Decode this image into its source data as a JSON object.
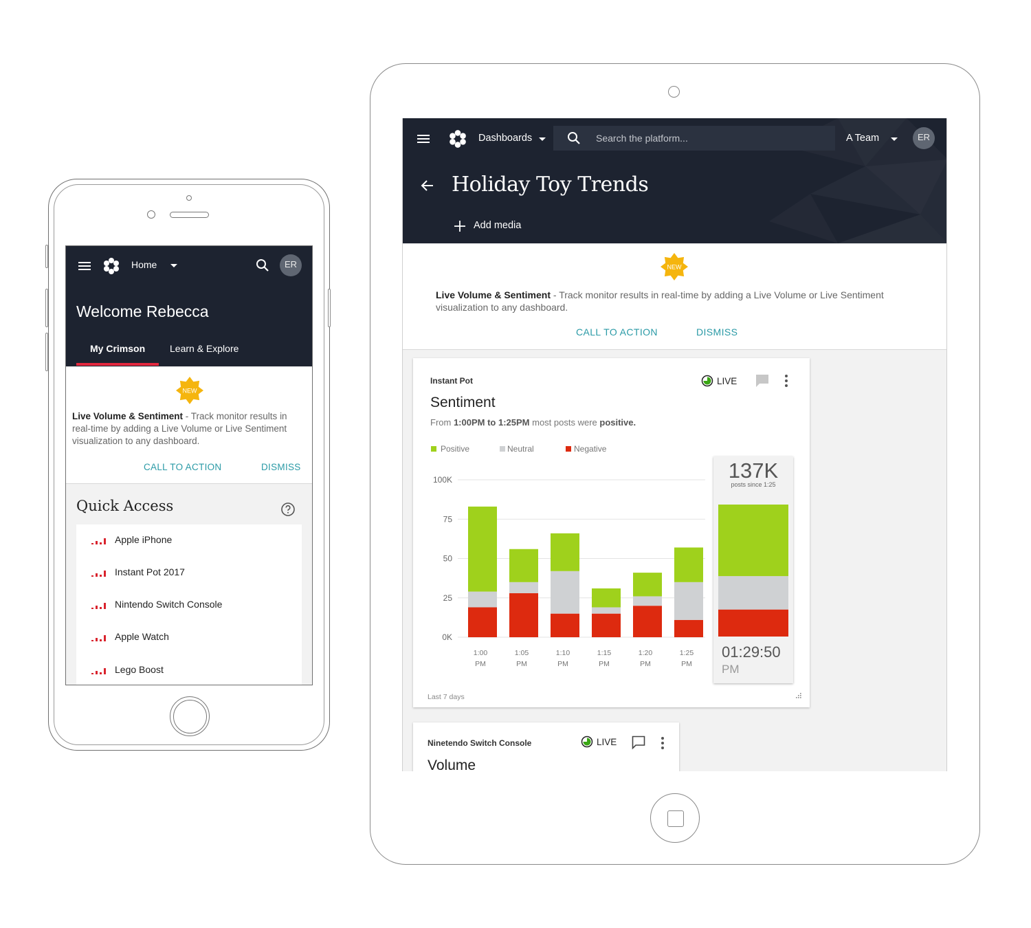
{
  "colors": {
    "header_bg": "#1d2330",
    "accent_teal": "#2a9aa6",
    "tab_underline": "#e3283e",
    "badge": "#f5b50e",
    "positive": "#9fd11c",
    "neutral": "#cfd1d3",
    "negative": "#dd2a0f"
  },
  "phone": {
    "header": {
      "nav_label": "Home",
      "avatar_initials": "ER",
      "welcome": "Welcome Rebecca",
      "tabs": [
        {
          "label": "My Crimson",
          "active": true
        },
        {
          "label": "Learn & Explore",
          "active": false
        }
      ]
    },
    "announcement": {
      "badge": "NEW",
      "title": "Live Volume & Sentiment",
      "text": " - Track monitor results in real-time by adding a Live Volume or Live Sentiment visualization to any dashboard.",
      "cta_label": "CALL TO ACTION",
      "dismiss_label": "DISMISS"
    },
    "quick_access": {
      "title": "Quick Access",
      "items": [
        {
          "label": "Apple iPhone"
        },
        {
          "label": "Instant Pot 2017"
        },
        {
          "label": "Nintendo Switch Console"
        },
        {
          "label": "Apple Watch"
        },
        {
          "label": "Lego Boost"
        }
      ]
    }
  },
  "tablet": {
    "header": {
      "nav_label": "Dashboards",
      "search_placeholder": "Search the platform...",
      "team_label": "A Team",
      "avatar_initials": "ER",
      "title": "Holiday Toy Trends",
      "add_media_label": "Add media"
    },
    "announcement": {
      "badge": "NEW",
      "title": "Live Volume & Sentiment",
      "text": " - Track monitor results in real-time by adding a Live Volume or Live Sentiment visualization to any dashboard.",
      "cta_label": "CALL TO ACTION",
      "dismiss_label": "DISMISS"
    },
    "widget1": {
      "monitor": "Instant Pot",
      "live_label": "LIVE",
      "title": "Sentiment",
      "desc_prefix": "From ",
      "desc_range": "1:00PM to 1:25PM",
      "desc_mid": " most posts were ",
      "desc_sentiment": "positive.",
      "total_label": "137K",
      "total_caption": "posts since 1:25",
      "current_time": "01:29:50",
      "current_ampm": "PM",
      "footer": "Last 7 days"
    },
    "widget2": {
      "monitor": "Ninetendo Switch Console",
      "live_label": "LIVE",
      "title": "Volume"
    }
  },
  "chart_data": {
    "type": "bar",
    "stacked": true,
    "categories": [
      [
        "1:00",
        "PM"
      ],
      [
        "1:05",
        "PM"
      ],
      [
        "1:10",
        "PM"
      ],
      [
        "1:15",
        "PM"
      ],
      [
        "1:20",
        "PM"
      ],
      [
        "1:25",
        "PM"
      ]
    ],
    "series": [
      {
        "name": "Positive",
        "color": "#9fd11c",
        "values": [
          54,
          21,
          24,
          12,
          15,
          22
        ]
      },
      {
        "name": "Neutral",
        "color": "#cfd1d3",
        "values": [
          10,
          7,
          27,
          4,
          6,
          24
        ]
      },
      {
        "name": "Negative",
        "color": "#dd2a0f",
        "values": [
          19,
          28,
          15,
          15,
          20,
          11
        ]
      }
    ],
    "y_ticks": [
      "0K",
      "25",
      "50",
      "75",
      "100K"
    ],
    "ylim": [
      0,
      100
    ],
    "grid": true,
    "legend": "top-left",
    "summary_bar": {
      "positive": 45,
      "neutral": 21,
      "negative": 17
    }
  }
}
